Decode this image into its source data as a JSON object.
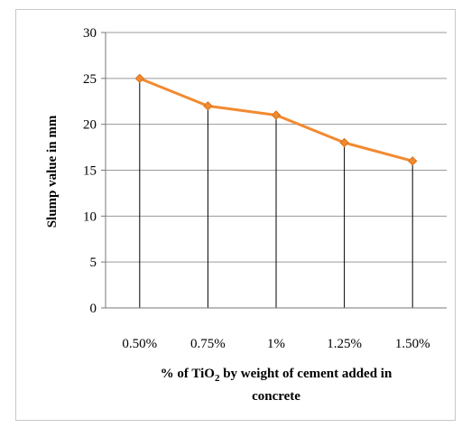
{
  "chart_data": {
    "type": "line",
    "categories": [
      "0.50%",
      "0.75%",
      "1%",
      "1.25%",
      "1.50%"
    ],
    "series": [
      {
        "values": [
          25,
          22,
          21,
          18,
          16
        ],
        "color": "#f28a30",
        "marker": "diamond"
      }
    ],
    "drop_lines": true,
    "xlabel": {
      "prefix": "% of TiO",
      "subscript": "2",
      "suffix": " by weight of cement added in",
      "line2": "concrete"
    },
    "ylabel": "Slump value in mm",
    "ylim": [
      0,
      30
    ],
    "yticks": [
      0,
      5,
      10,
      15,
      20,
      25,
      30
    ],
    "grid": "horizontal",
    "legend": "none"
  }
}
